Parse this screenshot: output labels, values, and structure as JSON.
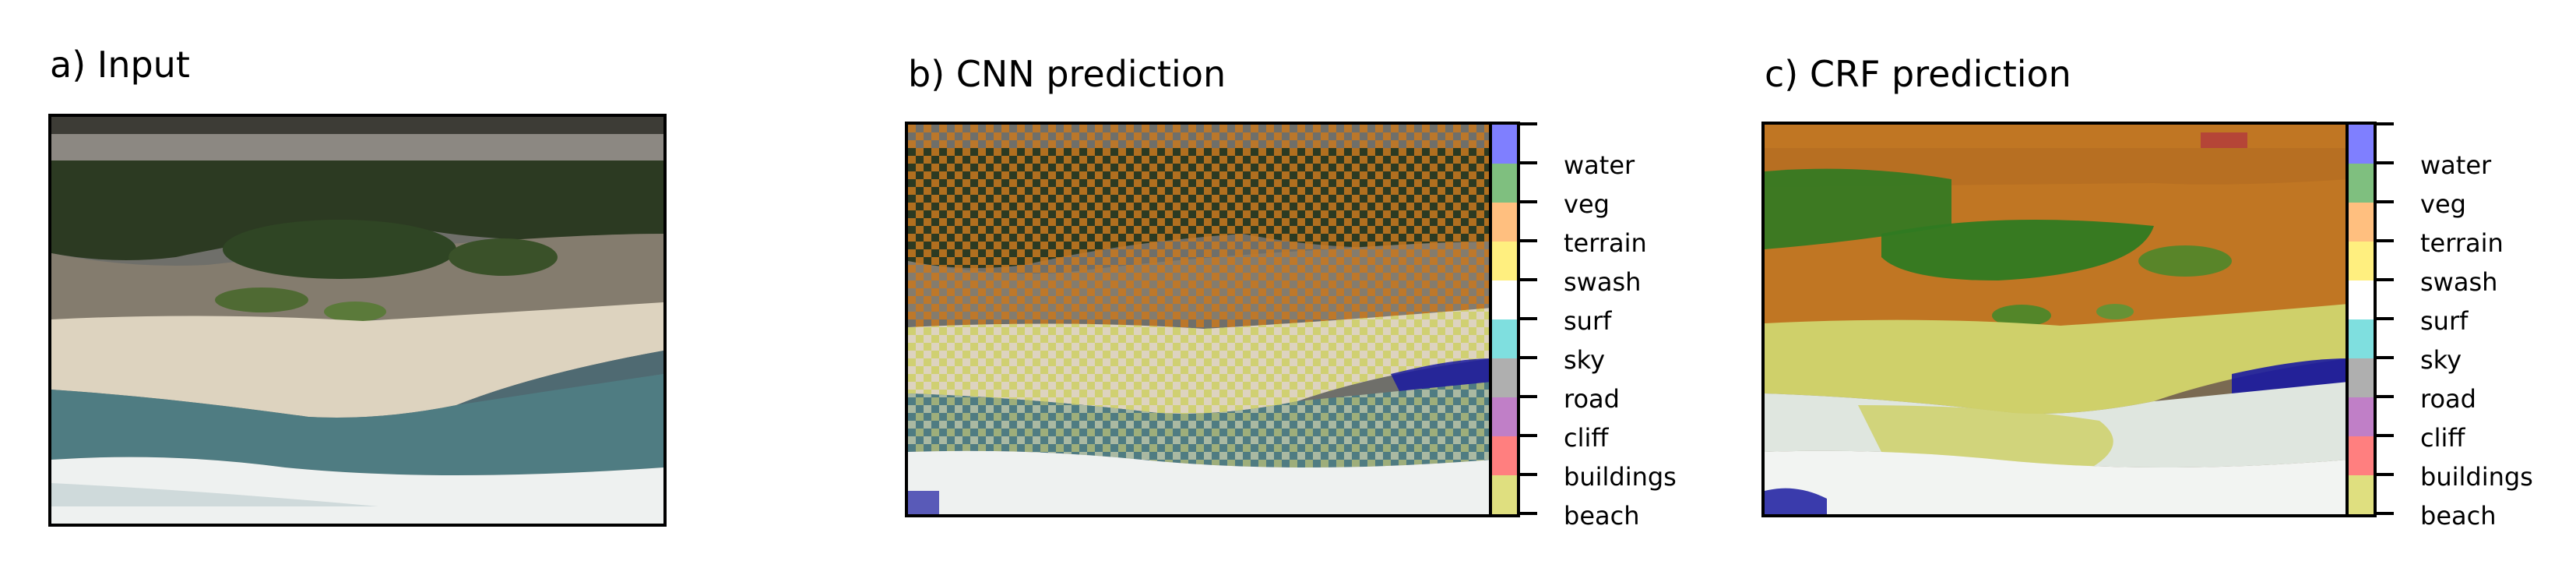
{
  "panels": {
    "input": {
      "title": "a) Input"
    },
    "cnn": {
      "title": "b) CNN prediction"
    },
    "crf": {
      "title": "c) CRF prediction"
    }
  },
  "legend": {
    "classes": [
      "water",
      "veg",
      "terrain",
      "swash",
      "surf",
      "sky",
      "road",
      "cliff",
      "buildings",
      "beach"
    ],
    "colors": [
      "#7f7fff",
      "#7fbf7f",
      "#ffbf7f",
      "#ffef7f",
      "#ffffff",
      "#7fdfdf",
      "#afafaf",
      "#c07fc7",
      "#ff7f7f",
      "#dfdf7f"
    ]
  },
  "overlay_colors": {
    "terrain_overlay": "#c8781e",
    "veg_overlay": "#2f7a22",
    "beach_overlay": "#cfd06a",
    "water_overlay": "#1a1aa0",
    "cliff_overlay": "#b03040"
  }
}
